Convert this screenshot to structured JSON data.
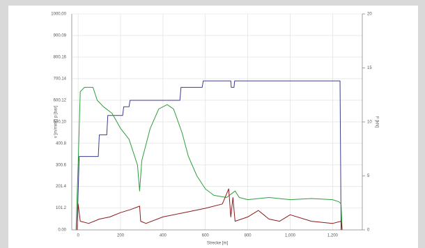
{
  "chart_data": {
    "type": "line",
    "xlabel": "Strecke [m]",
    "ylabel": "v [m/min] | p [bar]",
    "y2label": "F [kN]",
    "xlim": [
      -30,
      1340
    ],
    "xticks": [
      0,
      200,
      400,
      600,
      800,
      {
        "value": 1000,
        "label": "1,000"
      },
      {
        "value": 1200,
        "label": "1,200"
      }
    ],
    "ylim": [
      0,
      1000
    ],
    "yticks": [
      {
        "value": 0,
        "label": "0.00"
      },
      101.2,
      201.4,
      300.6,
      400.8,
      {
        "value": 500.1,
        "label": "500.10"
      },
      600.12,
      700.14,
      800.16,
      900.09,
      {
        "value": 1000,
        "label": "1000.00"
      }
    ],
    "y2lim": [
      0,
      20
    ],
    "y2ticks": [
      0,
      5,
      10,
      15,
      20
    ],
    "grid": true,
    "series": [
      {
        "color": "#3b3b8f",
        "x": [
          -5,
          5,
          95,
          100,
          135,
          140,
          210,
          215,
          240,
          245,
          480,
          485,
          585,
          590,
          720,
          722,
          735,
          738,
          1235,
          1240
        ],
        "values": [
          0,
          340,
          340,
          440,
          440,
          530,
          530,
          570,
          570,
          600,
          600,
          660,
          660,
          690,
          690,
          660,
          660,
          690,
          690,
          0
        ]
      },
      {
        "color": "#2e9e3e",
        "x": [
          -10,
          0,
          10,
          30,
          70,
          90,
          120,
          160,
          200,
          240,
          270,
          280,
          290,
          300,
          340,
          380,
          420,
          450,
          490,
          520,
          560,
          600,
          640,
          700,
          740,
          760,
          800,
          900,
          1000,
          1100,
          1200,
          1230,
          1240,
          1245
        ],
        "values": [
          0,
          300,
          640,
          660,
          660,
          600,
          570,
          540,
          470,
          420,
          330,
          300,
          180,
          320,
          470,
          560,
          580,
          560,
          450,
          340,
          250,
          190,
          160,
          150,
          180,
          150,
          140,
          150,
          140,
          145,
          140,
          130,
          120,
          0
        ]
      },
      {
        "color": "#8b1a1a",
        "x": [
          -5,
          0,
          10,
          50,
          100,
          150,
          200,
          250,
          290,
          295,
          320,
          400,
          500,
          600,
          680,
          710,
          720,
          730,
          740,
          800,
          850,
          900,
          950,
          1000,
          1100,
          1200,
          1240,
          1245
        ],
        "values": [
          0,
          120,
          40,
          30,
          50,
          60,
          80,
          95,
          110,
          40,
          30,
          60,
          80,
          100,
          120,
          190,
          60,
          150,
          40,
          60,
          90,
          50,
          40,
          70,
          40,
          30,
          40,
          0
        ]
      }
    ]
  }
}
